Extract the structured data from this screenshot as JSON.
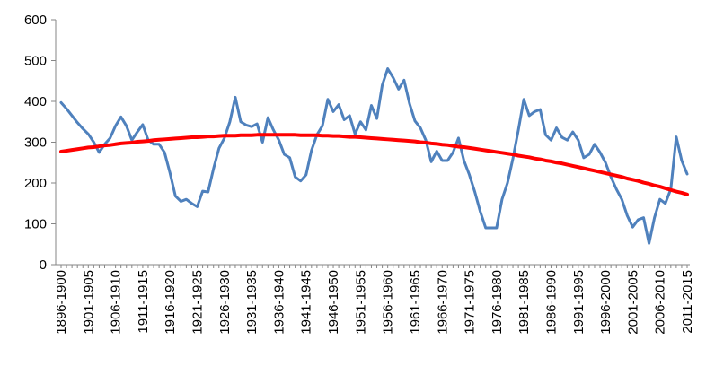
{
  "chart_data": {
    "type": "line",
    "categories": [
      "1896-1900",
      null,
      null,
      null,
      null,
      "1901-1905",
      null,
      null,
      null,
      null,
      "1906-1910",
      null,
      null,
      null,
      null,
      "1911-1915",
      null,
      null,
      null,
      null,
      "1916-1920",
      null,
      null,
      null,
      null,
      "1921-1925",
      null,
      null,
      null,
      null,
      "1926-1930",
      null,
      null,
      null,
      null,
      "1931-1935",
      null,
      null,
      null,
      null,
      "1936-1940",
      null,
      null,
      null,
      null,
      "1941-1945",
      null,
      null,
      null,
      null,
      "1946-1950",
      null,
      null,
      null,
      null,
      "1951-1955",
      null,
      null,
      null,
      null,
      "1956-1960",
      null,
      null,
      null,
      null,
      "1961-1965",
      null,
      null,
      null,
      null,
      "1966-1970",
      null,
      null,
      null,
      null,
      "1971-1975",
      null,
      null,
      null,
      null,
      "1976-1980",
      null,
      null,
      null,
      null,
      "1981-1985",
      null,
      null,
      null,
      null,
      "1986-1990",
      null,
      null,
      null,
      null,
      "1991-1995",
      null,
      null,
      null,
      null,
      "1996-2000",
      null,
      null,
      null,
      null,
      "2001-2005",
      null,
      null,
      null,
      null,
      "2006-2010",
      null,
      null,
      null,
      null,
      "2011-2015"
    ],
    "series": [
      {
        "color": "#4f81bd",
        "values": [
          397,
          382,
          365,
          348,
          333,
          320,
          300,
          275,
          295,
          310,
          340,
          362,
          340,
          305,
          325,
          343,
          305,
          295,
          295,
          275,
          225,
          168,
          155,
          160,
          150,
          142,
          180,
          178,
          235,
          285,
          310,
          350,
          410,
          350,
          342,
          338,
          345,
          300,
          360,
          330,
          305,
          270,
          262,
          215,
          205,
          220,
          280,
          318,
          340,
          405,
          375,
          392,
          355,
          365,
          320,
          350,
          330,
          390,
          358,
          440,
          480,
          458,
          430,
          452,
          395,
          352,
          335,
          305,
          252,
          278,
          255,
          255,
          275,
          310,
          255,
          220,
          178,
          130,
          90,
          90,
          90,
          160,
          200,
          260,
          330,
          405,
          365,
          375,
          380,
          318,
          305,
          335,
          312,
          305,
          325,
          305,
          262,
          270,
          295,
          275,
          250,
          215,
          185,
          160,
          120,
          92,
          110,
          115,
          52,
          115,
          160,
          150,
          185,
          313,
          255,
          222
        ]
      },
      {
        "color": "#ff0000",
        "values": [
          277,
          279,
          281,
          283,
          285,
          287,
          288,
          290,
          292,
          293,
          295,
          297,
          298,
          299,
          301,
          302,
          303,
          305,
          306,
          307,
          308,
          309,
          310,
          311,
          312,
          312,
          313,
          314,
          314,
          315,
          316,
          316,
          316,
          317,
          317,
          317,
          318,
          318,
          318,
          318,
          318,
          318,
          318,
          318,
          317,
          317,
          317,
          317,
          316,
          316,
          315,
          315,
          314,
          313,
          313,
          312,
          311,
          310,
          309,
          308,
          307,
          306,
          305,
          304,
          303,
          302,
          300,
          299,
          297,
          296,
          294,
          293,
          291,
          289,
          288,
          286,
          284,
          282,
          280,
          278,
          276,
          274,
          272,
          270,
          267,
          265,
          263,
          260,
          258,
          255,
          253,
          250,
          248,
          245,
          242,
          239,
          236,
          233,
          230,
          227,
          224,
          221,
          218,
          215,
          211,
          208,
          205,
          201,
          198,
          194,
          191,
          187,
          183,
          179,
          176,
          172
        ]
      }
    ],
    "ylim": [
      0,
      600
    ],
    "yticks": [
      0,
      100,
      200,
      300,
      400,
      500,
      600
    ],
    "grid": false
  }
}
